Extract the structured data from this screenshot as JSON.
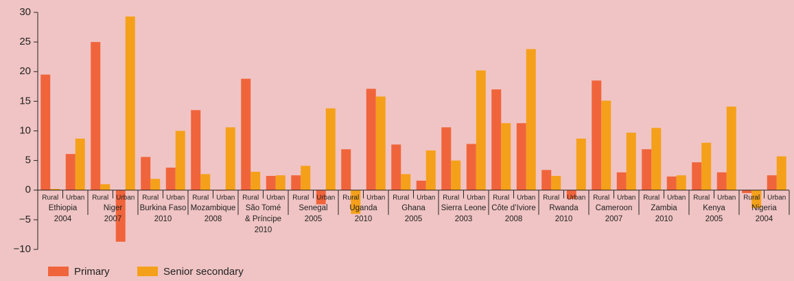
{
  "chart_data": {
    "type": "bar",
    "groups": [
      [
        "Ethiopia",
        "2004"
      ],
      [
        "Niger",
        "2007"
      ],
      [
        "Burkina Faso",
        "2010"
      ],
      [
        "Mozambique",
        "2008"
      ],
      [
        "São Tomé",
        "& Príncipe",
        "2010"
      ],
      [
        "Senegal",
        "2005"
      ],
      [
        "Uganda",
        "2010"
      ],
      [
        "Ghana",
        "2005"
      ],
      [
        "Sierra Leone",
        "2003"
      ],
      [
        "Côte d’Iviore",
        "2008"
      ],
      [
        "Rwanda",
        "2010"
      ],
      [
        "Cameroon",
        "2007"
      ],
      [
        "Zambia",
        "2010"
      ],
      [
        "Kenya",
        "2005"
      ],
      [
        "Nigeria",
        "2004"
      ]
    ],
    "categories": [
      "Rural",
      "Urban",
      "Rural",
      "Urban",
      "Rural",
      "Urban",
      "Rural",
      "Urban",
      "Rural",
      "Urban",
      "Rural",
      "Urban",
      "Rural",
      "Urban",
      "Rural",
      "Urban",
      "Rural",
      "Urban",
      "Rural",
      "Urban",
      "Rural",
      "Urban",
      "Rural",
      "Urban",
      "Rural",
      "Urban",
      "Rural",
      "Urban",
      "Rural",
      "Urban"
    ],
    "series": [
      {
        "name": "Primary",
        "color": "#f0643c",
        "values": [
          19.5,
          6.1,
          25,
          -8.7,
          5.6,
          3.8,
          13.5,
          -0.1,
          18.8,
          2.4,
          2.5,
          -2.4,
          6.9,
          17.1,
          7.7,
          1.6,
          10.6,
          7.8,
          17.0,
          11.3,
          3.4,
          -1.5,
          18.5,
          3.0,
          6.9,
          2.3,
          4.7,
          3.0,
          -0.5,
          2.5
        ]
      },
      {
        "name": "Senior secondary",
        "color": "#f5a01a",
        "values": [
          0.2,
          8.7,
          1.0,
          29.3,
          1.9,
          10.0,
          2.7,
          10.6,
          3.1,
          2.5,
          4.1,
          13.8,
          -4.0,
          15.8,
          2.7,
          6.7,
          5.0,
          20.2,
          11.3,
          23.8,
          2.4,
          8.7,
          15.1,
          9.7,
          10.5,
          2.5,
          8.0,
          14.1,
          -3.0,
          5.7
        ]
      }
    ],
    "ylim": [
      -10,
      30
    ],
    "yticks": [
      {
        "value": -10,
        "label": "−10"
      },
      {
        "value": -5,
        "label": "−5"
      },
      0,
      5,
      10,
      15,
      20,
      25,
      30
    ]
  }
}
